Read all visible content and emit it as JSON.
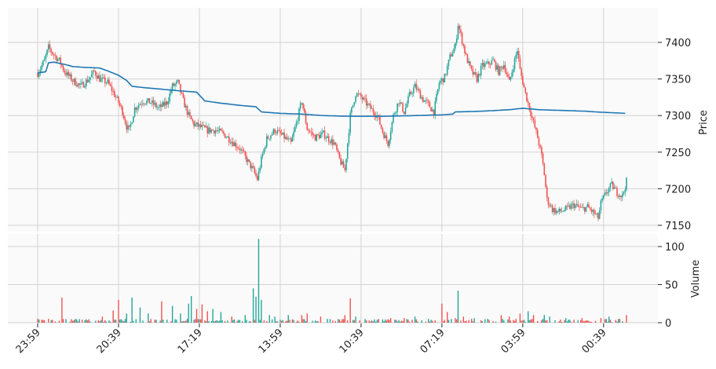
{
  "chart_data": {
    "type": "candlestick",
    "colors": {
      "up": "#26a69a",
      "down": "#ef5350",
      "ma": "#1f77b4",
      "grid": "#d3d3d3",
      "panel": "#fafafa"
    },
    "price_axis": {
      "label": "Price",
      "ylim": [
        7140,
        7445
      ],
      "ticks": [
        7150,
        7200,
        7250,
        7300,
        7350,
        7400
      ]
    },
    "volume_axis": {
      "label": "Volume",
      "ylim": [
        0,
        110
      ],
      "ticks": [
        0,
        50,
        100
      ]
    },
    "x_tick_labels": [
      "23:59",
      "20:39",
      "17:19",
      "13:59",
      "10:39",
      "07:19",
      "03:59",
      "00:39"
    ],
    "price_path": [
      [
        0,
        7358
      ],
      [
        5,
        7375
      ],
      [
        8,
        7393
      ],
      [
        12,
        7383
      ],
      [
        16,
        7375
      ],
      [
        20,
        7360
      ],
      [
        26,
        7348
      ],
      [
        32,
        7340
      ],
      [
        38,
        7350
      ],
      [
        42,
        7360
      ],
      [
        46,
        7350
      ],
      [
        52,
        7345
      ],
      [
        56,
        7332
      ],
      [
        60,
        7318
      ],
      [
        63,
        7305
      ],
      [
        66,
        7285
      ],
      [
        68,
        7280
      ],
      [
        72,
        7310
      ],
      [
        78,
        7320
      ],
      [
        84,
        7318
      ],
      [
        90,
        7310
      ],
      [
        96,
        7318
      ],
      [
        100,
        7340
      ],
      [
        104,
        7345
      ],
      [
        108,
        7320
      ],
      [
        112,
        7300
      ],
      [
        116,
        7288
      ],
      [
        120,
        7285
      ],
      [
        126,
        7280
      ],
      [
        132,
        7280
      ],
      [
        138,
        7275
      ],
      [
        144,
        7265
      ],
      [
        150,
        7255
      ],
      [
        155,
        7240
      ],
      [
        160,
        7225
      ],
      [
        163,
        7213
      ],
      [
        166,
        7240
      ],
      [
        170,
        7268
      ],
      [
        176,
        7280
      ],
      [
        182,
        7272
      ],
      [
        188,
        7262
      ],
      [
        192,
        7290
      ],
      [
        196,
        7320
      ],
      [
        200,
        7282
      ],
      [
        206,
        7270
      ],
      [
        212,
        7275
      ],
      [
        216,
        7268
      ],
      [
        220,
        7262
      ],
      [
        224,
        7240
      ],
      [
        228,
        7225
      ],
      [
        232,
        7300
      ],
      [
        236,
        7330
      ],
      [
        240,
        7325
      ],
      [
        246,
        7312
      ],
      [
        252,
        7300
      ],
      [
        256,
        7278
      ],
      [
        260,
        7262
      ],
      [
        264,
        7300
      ],
      [
        268,
        7320
      ],
      [
        272,
        7305
      ],
      [
        276,
        7328
      ],
      [
        280,
        7340
      ],
      [
        286,
        7322
      ],
      [
        290,
        7315
      ],
      [
        294,
        7305
      ],
      [
        298,
        7345
      ],
      [
        302,
        7352
      ],
      [
        306,
        7380
      ],
      [
        310,
        7395
      ],
      [
        312,
        7425
      ],
      [
        314,
        7410
      ],
      [
        318,
        7380
      ],
      [
        322,
        7360
      ],
      [
        326,
        7350
      ],
      [
        330,
        7368
      ],
      [
        334,
        7370
      ],
      [
        338,
        7375
      ],
      [
        342,
        7360
      ],
      [
        346,
        7370
      ],
      [
        350,
        7345
      ],
      [
        353,
        7368
      ],
      [
        356,
        7390
      ],
      [
        358,
        7362
      ],
      [
        362,
        7330
      ],
      [
        365,
        7310
      ],
      [
        368,
        7290
      ],
      [
        371,
        7270
      ],
      [
        374,
        7245
      ],
      [
        376,
        7220
      ],
      [
        378,
        7185
      ],
      [
        382,
        7172
      ],
      [
        386,
        7168
      ],
      [
        392,
        7172
      ],
      [
        398,
        7178
      ],
      [
        404,
        7172
      ],
      [
        408,
        7175
      ],
      [
        412,
        7168
      ],
      [
        416,
        7160
      ],
      [
        418,
        7180
      ],
      [
        422,
        7195
      ],
      [
        426,
        7205
      ],
      [
        430,
        7195
      ],
      [
        434,
        7190
      ],
      [
        437,
        7210
      ]
    ],
    "ma_path": [
      [
        0,
        7358
      ],
      [
        6,
        7360
      ],
      [
        8,
        7372
      ],
      [
        12,
        7373
      ],
      [
        20,
        7370
      ],
      [
        26,
        7367
      ],
      [
        34,
        7366
      ],
      [
        46,
        7365
      ],
      [
        52,
        7361
      ],
      [
        60,
        7355
      ],
      [
        66,
        7348
      ],
      [
        70,
        7340
      ],
      [
        80,
        7338
      ],
      [
        92,
        7336
      ],
      [
        104,
        7334
      ],
      [
        118,
        7332
      ],
      [
        124,
        7320
      ],
      [
        136,
        7317
      ],
      [
        150,
        7314
      ],
      [
        162,
        7312
      ],
      [
        166,
        7305
      ],
      [
        180,
        7303
      ],
      [
        196,
        7302
      ],
      [
        212,
        7300
      ],
      [
        232,
        7299
      ],
      [
        256,
        7299
      ],
      [
        280,
        7300
      ],
      [
        300,
        7301
      ],
      [
        308,
        7302
      ],
      [
        310,
        7305
      ],
      [
        330,
        7306
      ],
      [
        350,
        7308
      ],
      [
        360,
        7310
      ],
      [
        372,
        7308
      ],
      [
        390,
        7307
      ],
      [
        406,
        7306
      ],
      [
        414,
        7305
      ],
      [
        437,
        7303
      ]
    ],
    "volume_spikes": [
      [
        0,
        5
      ],
      [
        8,
        5
      ],
      [
        18,
        33
      ],
      [
        28,
        5
      ],
      [
        48,
        8
      ],
      [
        56,
        16
      ],
      [
        60,
        30
      ],
      [
        66,
        12
      ],
      [
        70,
        33
      ],
      [
        76,
        20
      ],
      [
        82,
        12
      ],
      [
        92,
        28
      ],
      [
        100,
        22
      ],
      [
        106,
        12
      ],
      [
        112,
        25
      ],
      [
        114,
        35
      ],
      [
        118,
        18
      ],
      [
        122,
        24
      ],
      [
        126,
        15
      ],
      [
        130,
        18
      ],
      [
        136,
        14
      ],
      [
        144,
        8
      ],
      [
        154,
        10
      ],
      [
        160,
        45
      ],
      [
        162,
        34
      ],
      [
        164,
        110
      ],
      [
        166,
        30
      ],
      [
        172,
        10
      ],
      [
        176,
        8
      ],
      [
        186,
        10
      ],
      [
        196,
        10
      ],
      [
        200,
        12
      ],
      [
        210,
        8
      ],
      [
        228,
        10
      ],
      [
        232,
        32
      ],
      [
        236,
        8
      ],
      [
        262,
        6
      ],
      [
        272,
        6
      ],
      [
        280,
        8
      ],
      [
        290,
        5
      ],
      [
        300,
        25
      ],
      [
        304,
        14
      ],
      [
        310,
        6
      ],
      [
        312,
        42
      ],
      [
        316,
        8
      ],
      [
        324,
        6
      ],
      [
        334,
        5
      ],
      [
        344,
        10
      ],
      [
        350,
        8
      ],
      [
        358,
        12
      ],
      [
        364,
        15
      ],
      [
        368,
        10
      ],
      [
        376,
        10
      ],
      [
        380,
        8
      ],
      [
        392,
        6
      ],
      [
        404,
        6
      ],
      [
        418,
        6
      ],
      [
        424,
        8
      ],
      [
        432,
        5
      ],
      [
        437,
        10
      ]
    ]
  }
}
